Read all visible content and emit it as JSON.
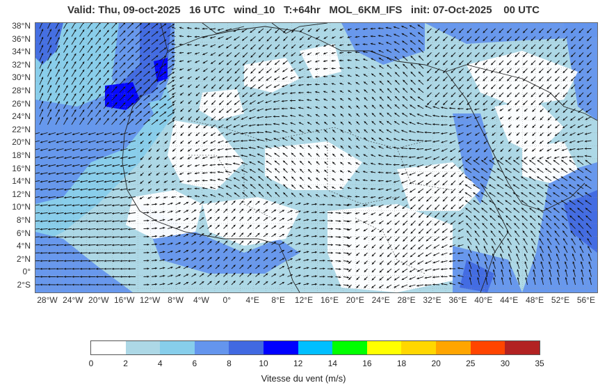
{
  "title": "Valid: Thu, 09-oct-2025   16 UTC   wind_10   T:+64hr   MOL_6KM_IFS   init: 07-Oct-2025    00 UTC",
  "lat_labels": [
    "38°N",
    "36°N",
    "34°N",
    "32°N",
    "30°N",
    "28°N",
    "26°N",
    "24°N",
    "22°N",
    "20°N",
    "18°N",
    "16°N",
    "14°N",
    "12°N",
    "10°N",
    "8°N",
    "6°N",
    "4°N",
    "2°N",
    "0°",
    "2°S"
  ],
  "lon_labels": [
    "28°W",
    "24°W",
    "20°W",
    "16°W",
    "12°W",
    "8°W",
    "4°W",
    "0°",
    "4°E",
    "8°E",
    "12°E",
    "16°E",
    "20°E",
    "24°E",
    "28°E",
    "32°E",
    "36°E",
    "40°E",
    "44°E",
    "48°E",
    "52°E",
    "56°E"
  ],
  "colorbar": {
    "title": "Vitesse du vent (m/s)",
    "ticks": [
      "0",
      "2",
      "4",
      "6",
      "8",
      "10",
      "12",
      "14",
      "16",
      "18",
      "20",
      "25",
      "30",
      "35"
    ],
    "colors": [
      "#ffffff",
      "#add8e6",
      "#87ceeb",
      "#6495ed",
      "#4169e1",
      "#0000ff",
      "#00bfff",
      "#00ff00",
      "#ffff00",
      "#ffd700",
      "#ffa500",
      "#ff4500",
      "#b22222"
    ]
  }
}
